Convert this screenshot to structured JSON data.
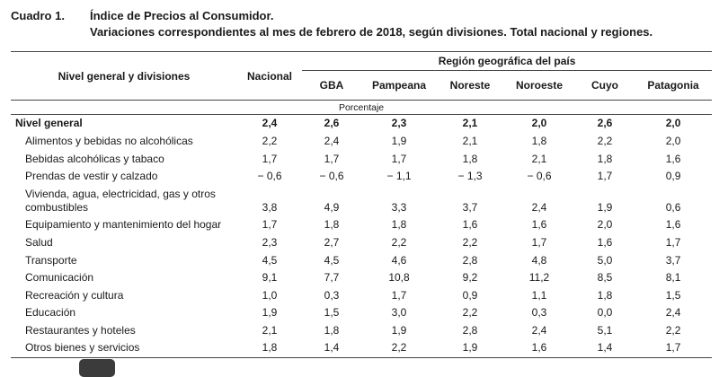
{
  "title": {
    "label": "Cuadro 1.",
    "heading": "Índice de Precios al Consumidor.",
    "subtitle": "Variaciones correspondientes al mes de febrero de 2018, según divisiones. Total nacional y regiones."
  },
  "table": {
    "col_division_header": "Nivel general y divisiones",
    "col_nacional_header": "Nacional",
    "region_group_header": "Región geográfica del país",
    "region_columns": [
      "GBA",
      "Pampeana",
      "Noreste",
      "Noroeste",
      "Cuyo",
      "Patagonia"
    ],
    "unit_row": "Porcentaje",
    "rows": [
      {
        "label": "Nivel general",
        "bold": true,
        "values": [
          "2,4",
          "2,6",
          "2,3",
          "2,1",
          "2,0",
          "2,6",
          "2,0"
        ]
      },
      {
        "label": "Alimentos y bebidas no alcohólicas",
        "values": [
          "2,2",
          "2,4",
          "1,9",
          "2,1",
          "1,8",
          "2,2",
          "2,0"
        ]
      },
      {
        "label": "Bebidas alcohólicas y tabaco",
        "values": [
          "1,7",
          "1,7",
          "1,7",
          "1,8",
          "2,1",
          "1,8",
          "1,6"
        ]
      },
      {
        "label": "Prendas de vestir y calzado",
        "values": [
          "− 0,6",
          "− 0,6",
          "− 1,1",
          "− 1,3",
          "− 0,6",
          "1,7",
          "0,9"
        ]
      },
      {
        "label": "Vivienda, agua, electricidad, gas y otros combustibles",
        "values": [
          "3,8",
          "4,9",
          "3,3",
          "3,7",
          "2,4",
          "1,9",
          "0,6"
        ]
      },
      {
        "label": "Equipamiento y mantenimiento del hogar",
        "values": [
          "1,7",
          "1,8",
          "1,8",
          "1,6",
          "1,6",
          "2,0",
          "1,6"
        ]
      },
      {
        "label": "Salud",
        "values": [
          "2,3",
          "2,7",
          "2,2",
          "2,2",
          "1,7",
          "1,6",
          "1,7"
        ]
      },
      {
        "label": "Transporte",
        "values": [
          "4,5",
          "4,5",
          "4,6",
          "2,8",
          "4,8",
          "5,0",
          "3,7"
        ]
      },
      {
        "label": "Comunicación",
        "values": [
          "9,1",
          "7,7",
          "10,8",
          "9,2",
          "11,2",
          "8,5",
          "8,1"
        ]
      },
      {
        "label": "Recreación y cultura",
        "values": [
          "1,0",
          "0,3",
          "1,7",
          "0,9",
          "1,1",
          "1,8",
          "1,5"
        ]
      },
      {
        "label": "Educación",
        "values": [
          "1,9",
          "1,5",
          "3,0",
          "2,2",
          "0,3",
          "0,0",
          "2,4"
        ]
      },
      {
        "label": "Restaurantes y hoteles",
        "values": [
          "2,1",
          "1,8",
          "1,9",
          "2,8",
          "2,4",
          "5,1",
          "2,2"
        ]
      },
      {
        "label": "Otros bienes y servicios",
        "values": [
          "1,8",
          "1,4",
          "2,2",
          "1,9",
          "1,6",
          "1,4",
          "1,7"
        ]
      }
    ]
  }
}
